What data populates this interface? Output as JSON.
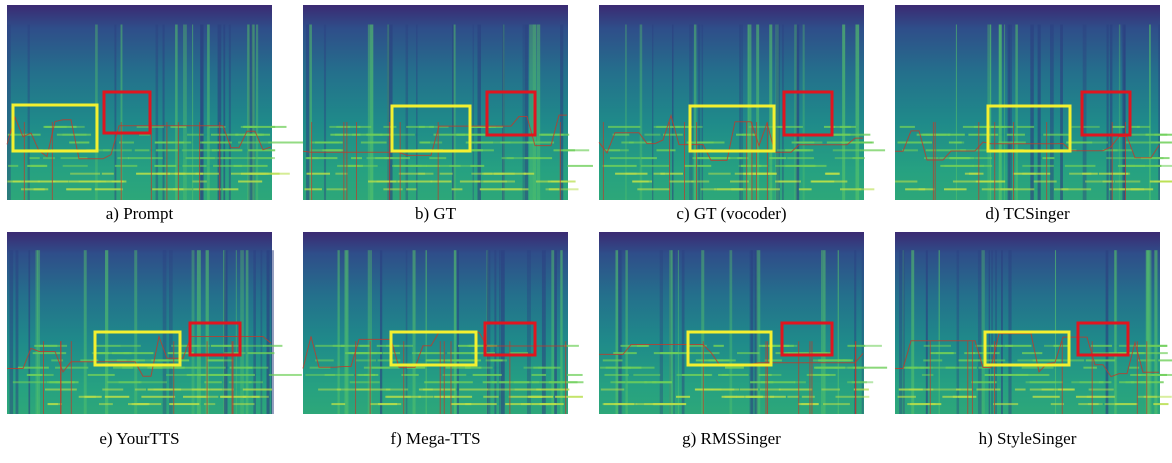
{
  "panels": [
    {
      "caption": "a) Prompt"
    },
    {
      "caption": "b) GT"
    },
    {
      "caption": "c) GT (vocoder)"
    },
    {
      "caption": "d) TCSinger"
    },
    {
      "caption": "e) YourTTS"
    },
    {
      "caption": "f) Mega-TTS"
    },
    {
      "caption": "g) RMSSinger"
    },
    {
      "caption": "h) StyleSinger"
    }
  ]
}
